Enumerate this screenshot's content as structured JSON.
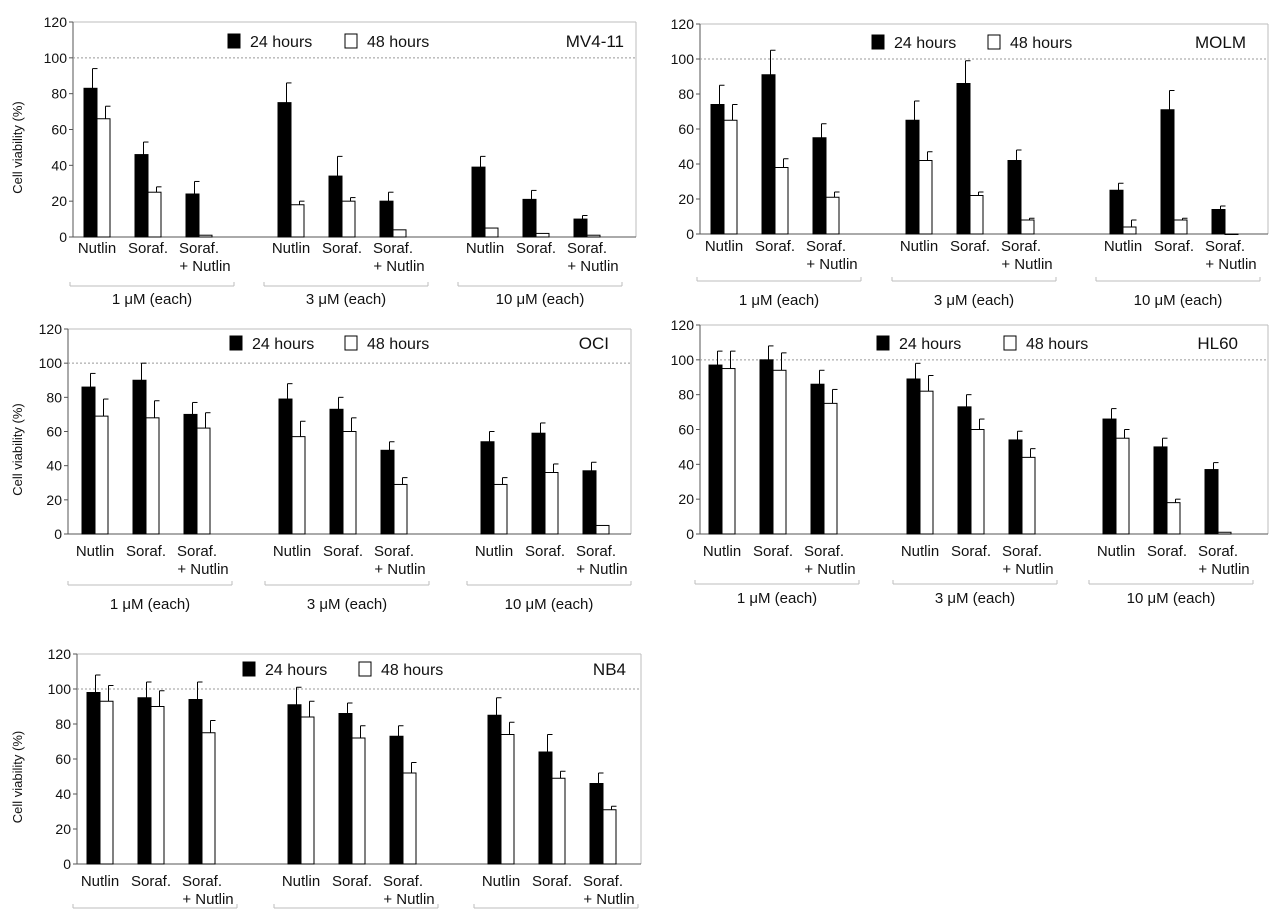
{
  "chart_data": [
    {
      "type": "bar",
      "title": "MV4-11",
      "ylabel": "Cell viability (%)",
      "ylim": [
        0,
        120
      ],
      "yticks": [
        "0",
        "20",
        "40",
        "60",
        "80",
        "100",
        "120"
      ],
      "reference_line": 100,
      "series": [
        {
          "name": "24 hours",
          "color": "#000000",
          "values": [
            83,
            46,
            24,
            75,
            34,
            20,
            39,
            21,
            10
          ],
          "errors": [
            11,
            7,
            7,
            11,
            11,
            5,
            6,
            5,
            2
          ]
        },
        {
          "name": "48 hours",
          "color": "#ffffff",
          "values": [
            66,
            25,
            1,
            18,
            20,
            4,
            5,
            2,
            1
          ],
          "errors": [
            7,
            3,
            0,
            2,
            2,
            0,
            0,
            0,
            0
          ]
        }
      ],
      "groups": [
        {
          "label": "1 μM (each)",
          "categories": [
            {
              "l1": "Nutlin",
              "l2": ""
            },
            {
              "l1": "Soraf.",
              "l2": ""
            },
            {
              "l1": "Soraf.",
              "l2": "+ Nutlin"
            }
          ]
        },
        {
          "label": "3 μM (each)",
          "categories": [
            {
              "l1": "Nutlin",
              "l2": ""
            },
            {
              "l1": "Soraf.",
              "l2": ""
            },
            {
              "l1": "Soraf.",
              "l2": "+ Nutlin"
            }
          ]
        },
        {
          "label": "10 μM (each)",
          "categories": [
            {
              "l1": "Nutlin",
              "l2": ""
            },
            {
              "l1": "Soraf.",
              "l2": ""
            },
            {
              "l1": "Soraf.",
              "l2": "+ Nutlin"
            }
          ]
        }
      ]
    },
    {
      "type": "bar",
      "title": "MOLM",
      "ylabel": "",
      "ylim": [
        0,
        120
      ],
      "yticks": [
        "0",
        "20",
        "40",
        "60",
        "80",
        "100",
        "120"
      ],
      "reference_line": 100,
      "series": [
        {
          "name": "24 hours",
          "color": "#000000",
          "values": [
            74,
            91,
            55,
            65,
            86,
            42,
            25,
            71,
            14
          ],
          "errors": [
            11,
            14,
            8,
            11,
            13,
            6,
            4,
            11,
            2
          ]
        },
        {
          "name": "48 hours",
          "color": "#ffffff",
          "values": [
            65,
            38,
            21,
            42,
            22,
            8,
            4,
            8,
            0
          ],
          "errors": [
            9,
            5,
            3,
            5,
            2,
            1,
            4,
            1,
            0
          ]
        }
      ],
      "groups": [
        {
          "label": "1 μM (each)",
          "categories": [
            {
              "l1": "Nutlin",
              "l2": ""
            },
            {
              "l1": "Soraf.",
              "l2": ""
            },
            {
              "l1": "Soraf.",
              "l2": "+ Nutlin"
            }
          ]
        },
        {
          "label": "3 μM (each)",
          "categories": [
            {
              "l1": "Nutlin",
              "l2": ""
            },
            {
              "l1": "Soraf.",
              "l2": ""
            },
            {
              "l1": "Soraf.",
              "l2": "+ Nutlin"
            }
          ]
        },
        {
          "label": "10 μM (each)",
          "categories": [
            {
              "l1": "Nutlin",
              "l2": ""
            },
            {
              "l1": "Soraf.",
              "l2": ""
            },
            {
              "l1": "Soraf.",
              "l2": "+ Nutlin"
            }
          ]
        }
      ]
    },
    {
      "type": "bar",
      "title": "OCI",
      "ylabel": "Cell viability (%)",
      "ylim": [
        0,
        120
      ],
      "yticks": [
        "0",
        "20",
        "40",
        "60",
        "80",
        "100",
        "120"
      ],
      "reference_line": 100,
      "series": [
        {
          "name": "24 hours",
          "color": "#000000",
          "values": [
            86,
            90,
            70,
            79,
            73,
            49,
            54,
            59,
            37
          ],
          "errors": [
            8,
            10,
            7,
            9,
            7,
            5,
            6,
            6,
            5
          ]
        },
        {
          "name": "48 hours",
          "color": "#ffffff",
          "values": [
            69,
            68,
            62,
            57,
            60,
            29,
            29,
            36,
            5
          ],
          "errors": [
            10,
            10,
            9,
            9,
            8,
            4,
            4,
            5,
            0
          ]
        }
      ],
      "groups": [
        {
          "label": "1 μM (each)",
          "categories": [
            {
              "l1": "Nutlin",
              "l2": ""
            },
            {
              "l1": "Soraf.",
              "l2": ""
            },
            {
              "l1": "Soraf.",
              "l2": "+ Nutlin"
            }
          ]
        },
        {
          "label": "3 μM (each)",
          "categories": [
            {
              "l1": "Nutlin",
              "l2": ""
            },
            {
              "l1": "Soraf.",
              "l2": ""
            },
            {
              "l1": "Soraf.",
              "l2": "+ Nutlin"
            }
          ]
        },
        {
          "label": "10 μM (each)",
          "categories": [
            {
              "l1": "Nutlin",
              "l2": ""
            },
            {
              "l1": "Soraf.",
              "l2": ""
            },
            {
              "l1": "Soraf.",
              "l2": "+ Nutlin"
            }
          ]
        }
      ]
    },
    {
      "type": "bar",
      "title": "HL60",
      "ylabel": "",
      "ylim": [
        0,
        120
      ],
      "yticks": [
        "0",
        "20",
        "40",
        "60",
        "80",
        "100",
        "120"
      ],
      "reference_line": 100,
      "series": [
        {
          "name": "24 hours",
          "color": "#000000",
          "values": [
            97,
            100,
            86,
            89,
            73,
            54,
            66,
            50,
            37
          ],
          "errors": [
            8,
            8,
            8,
            9,
            7,
            5,
            6,
            5,
            4
          ]
        },
        {
          "name": "48 hours",
          "color": "#ffffff",
          "values": [
            95,
            94,
            75,
            82,
            60,
            44,
            55,
            18,
            1
          ],
          "errors": [
            10,
            10,
            8,
            9,
            6,
            5,
            5,
            2,
            0
          ]
        }
      ],
      "groups": [
        {
          "label": "1 μM (each)",
          "categories": [
            {
              "l1": "Nutlin",
              "l2": ""
            },
            {
              "l1": "Soraf.",
              "l2": ""
            },
            {
              "l1": "Soraf.",
              "l2": "+ Nutlin"
            }
          ]
        },
        {
          "label": "3 μM (each)",
          "categories": [
            {
              "l1": "Nutlin",
              "l2": ""
            },
            {
              "l1": "Soraf.",
              "l2": ""
            },
            {
              "l1": "Soraf.",
              "l2": "+ Nutlin"
            }
          ]
        },
        {
          "label": "10 μM (each)",
          "categories": [
            {
              "l1": "Nutlin",
              "l2": ""
            },
            {
              "l1": "Soraf.",
              "l2": ""
            },
            {
              "l1": "Soraf.",
              "l2": "+ Nutlin"
            }
          ]
        }
      ]
    },
    {
      "type": "bar",
      "title": "NB4",
      "ylabel": "Cell viability (%)",
      "ylim": [
        0,
        120
      ],
      "yticks": [
        "0",
        "20",
        "40",
        "60",
        "80",
        "100",
        "120"
      ],
      "reference_line": 100,
      "series": [
        {
          "name": "24 hours",
          "color": "#000000",
          "values": [
            98,
            95,
            94,
            91,
            86,
            73,
            85,
            64,
            46
          ],
          "errors": [
            10,
            9,
            10,
            10,
            6,
            6,
            10,
            10,
            6
          ]
        },
        {
          "name": "48 hours",
          "color": "#ffffff",
          "values": [
            93,
            90,
            75,
            84,
            72,
            52,
            74,
            49,
            31
          ],
          "errors": [
            9,
            9,
            7,
            9,
            7,
            6,
            7,
            4,
            2
          ]
        }
      ],
      "groups": [
        {
          "label": "",
          "categories": [
            {
              "l1": "Nutlin",
              "l2": ""
            },
            {
              "l1": "Soraf.",
              "l2": ""
            },
            {
              "l1": "Soraf.",
              "l2": "+ Nutlin"
            }
          ]
        },
        {
          "label": "",
          "categories": [
            {
              "l1": "Nutlin",
              "l2": ""
            },
            {
              "l1": "Soraf.",
              "l2": ""
            },
            {
              "l1": "Soraf.",
              "l2": "+ Nutlin"
            }
          ]
        },
        {
          "label": "",
          "categories": [
            {
              "l1": "Nutlin",
              "l2": ""
            },
            {
              "l1": "Soraf.",
              "l2": ""
            },
            {
              "l1": "Soraf.",
              "l2": "+ Nutlin"
            }
          ]
        }
      ]
    }
  ]
}
